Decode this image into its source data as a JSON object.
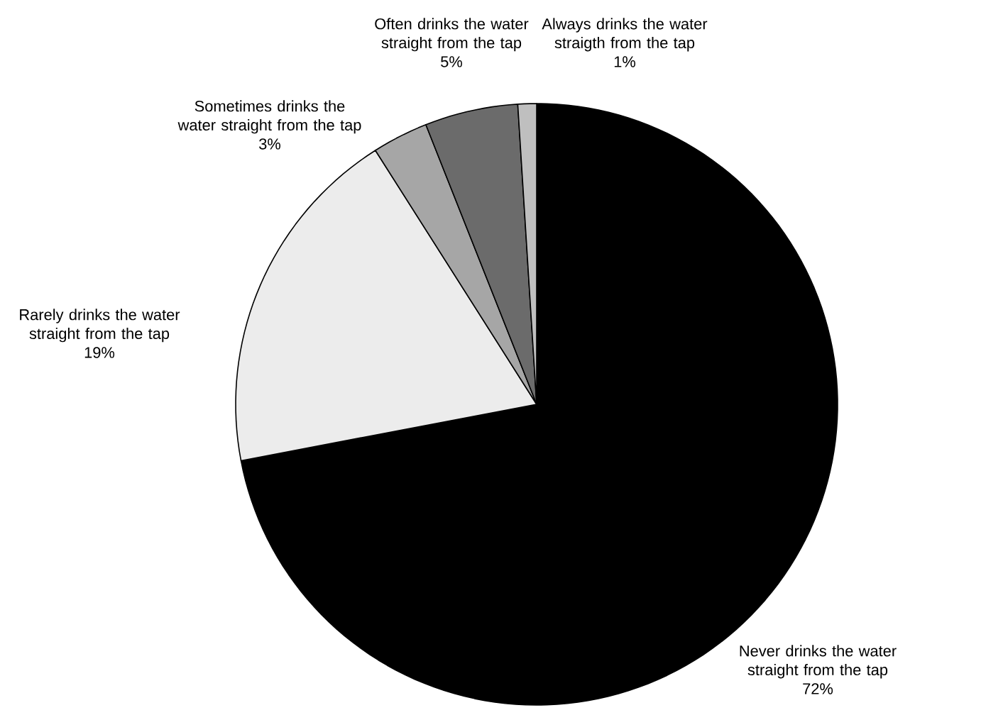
{
  "chart_data": {
    "type": "pie",
    "categories": [
      "Never drinks the water straight from the tap",
      "Rarely drinks the water straight from the tap",
      "Sometimes drinks the water straight from the tap",
      "Often drinks the water straight from the tap",
      "Always drinks the water straigth from the tap"
    ],
    "values": [
      72,
      19,
      3,
      5,
      1
    ],
    "value_labels": [
      "72%",
      "19%",
      "3%",
      "5%",
      "1%"
    ],
    "colors": [
      "#000000",
      "#ececec",
      "#a6a6a6",
      "#6b6b6b",
      "#bfbfbf"
    ]
  }
}
